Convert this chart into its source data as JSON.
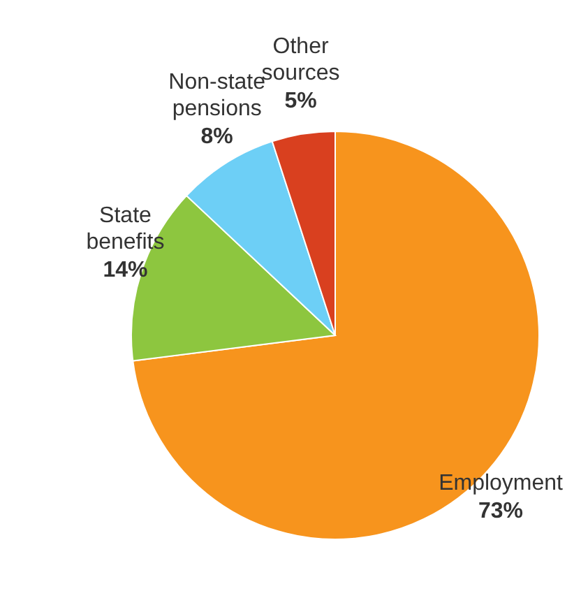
{
  "chart_data": {
    "type": "pie",
    "categories": [
      "Employment",
      "State benefits",
      "Non-state pensions",
      "Other sources"
    ],
    "values": [
      73,
      14,
      8,
      5
    ],
    "colors": [
      "#f7941d",
      "#8dc63f",
      "#6dcff6",
      "#d9401f"
    ],
    "value_labels": [
      "73%",
      "14%",
      "8%",
      "5%"
    ]
  }
}
